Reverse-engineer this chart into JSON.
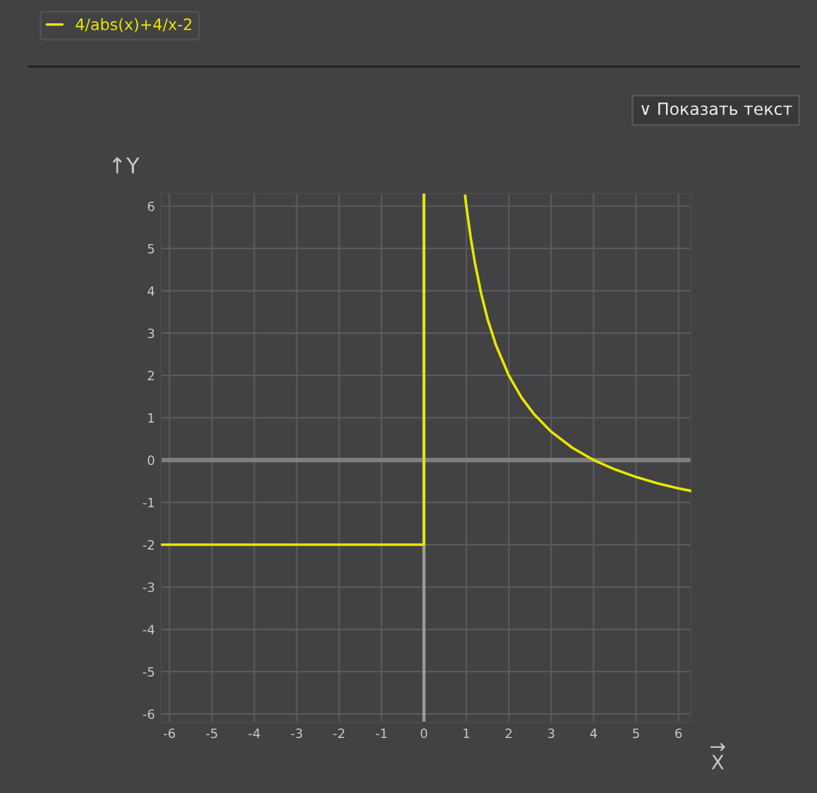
{
  "chart_data": {
    "type": "line",
    "xlabel": "→\nX",
    "ylabel": "↑Y",
    "annotations": [
      "∨ Показать текст"
    ],
    "series": [
      {
        "name": "4/abs(x)+4/x-2",
        "color": "#e8e800",
        "x": [
          -6.2,
          0,
          0,
          0.5,
          0.97,
          1,
          1.1,
          1.2,
          1.35,
          1.5,
          1.7,
          2,
          2.3,
          2.6,
          3,
          3.5,
          4,
          4.5,
          5,
          5.5,
          6,
          6.3
        ],
        "values": [
          -2,
          -2,
          6.3,
          null,
          6.25,
          6,
          5.27,
          4.67,
          3.93,
          3.33,
          2.71,
          2,
          1.48,
          1.08,
          0.67,
          0.29,
          0,
          -0.22,
          -0.4,
          -0.55,
          -0.67,
          -0.73
        ]
      }
    ],
    "xlim": [
      -6.2,
      6.3
    ],
    "ylim": [
      -6.2,
      6.3
    ],
    "xticks": [
      -6,
      -5,
      -4,
      -3,
      -2,
      -1,
      0,
      1,
      2,
      3,
      4,
      5,
      6
    ],
    "yticks": [
      -6,
      -5,
      -4,
      -3,
      -2,
      -1,
      0,
      1,
      2,
      3,
      4,
      5,
      6
    ],
    "ref_lines": [
      {
        "axis": "y",
        "value": 0,
        "color": "#7f7f7f"
      },
      {
        "axis": "x",
        "value": 0,
        "color": "#9a9a9a"
      }
    ],
    "grid": true,
    "legend": "top left",
    "line_style": "solid",
    "marker": "none"
  }
}
